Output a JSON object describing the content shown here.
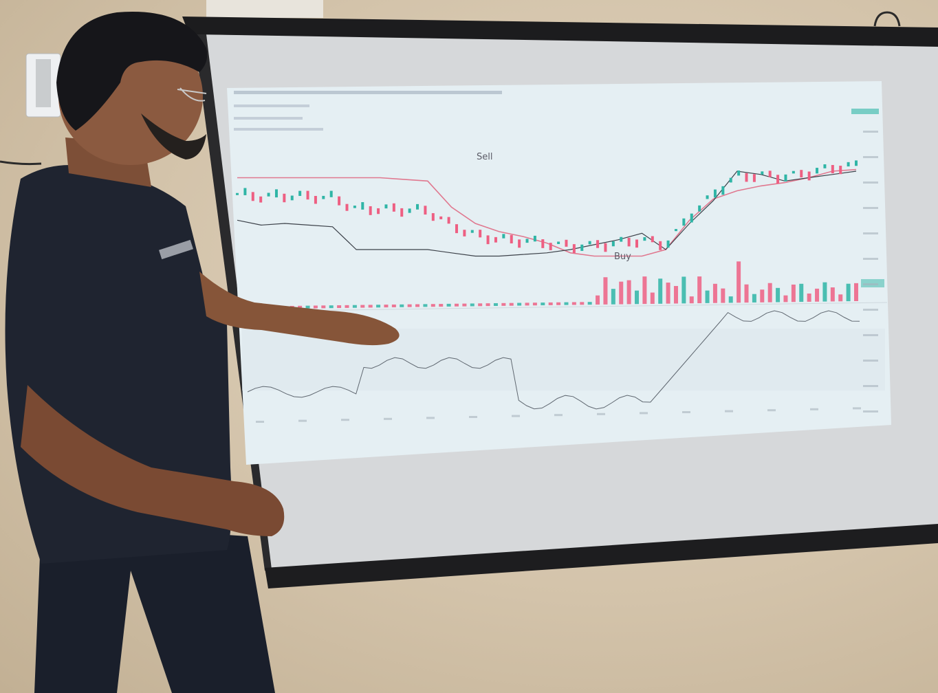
{
  "scene": {
    "description_free": true,
    "wall_color": "#d6c7ae",
    "shirt_color": "#1f2430",
    "skin_color": "#8b5a40"
  },
  "chart_screen": {
    "annotations": {
      "sell": "Sell",
      "buy": "Buy"
    },
    "colors": {
      "up": "#2fb5a6",
      "down": "#ee5f82",
      "resistance_line": "#e0788f",
      "support_line": "#3b4048",
      "indicator_line": "#5f6770",
      "screen_bg": "#e6f0f4"
    }
  },
  "chart_data": {
    "type": "line",
    "series": [
      {
        "values": [
          68,
          68,
          68,
          68,
          68,
          68,
          68,
          67,
          66,
          50,
          40,
          35,
          32,
          28,
          22,
          20,
          20,
          20,
          24,
          42,
          55,
          60,
          63,
          65,
          68,
          72,
          73
        ]
      },
      {
        "values": [
          48,
          45,
          46,
          45,
          44,
          30,
          30,
          30,
          30,
          28,
          26,
          26,
          27,
          28,
          30,
          33,
          36,
          40,
          30,
          46,
          60,
          78,
          76,
          72,
          74,
          76,
          78
        ]
      }
    ]
  }
}
